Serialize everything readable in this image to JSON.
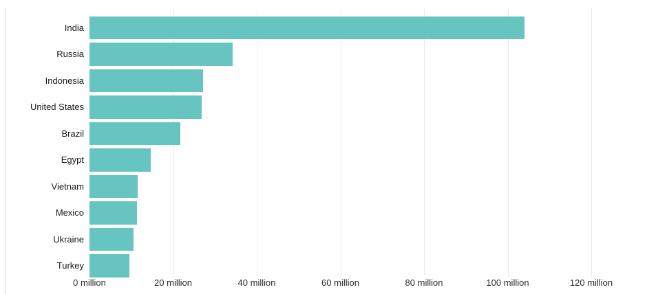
{
  "chart_data": {
    "type": "bar",
    "orientation": "horizontal",
    "title": "",
    "xlabel": "",
    "ylabel": "",
    "unit": "million",
    "categories": [
      "India",
      "Russia",
      "Indonesia",
      "United States",
      "Brazil",
      "Egypt",
      "Vietnam",
      "Mexico",
      "Ukraine",
      "Turkey"
    ],
    "values": [
      104.0,
      34.2,
      27.1,
      26.8,
      21.8,
      14.7,
      11.6,
      11.4,
      10.6,
      9.6
    ],
    "x_ticks": [
      {
        "value": 0,
        "label": "0 million"
      },
      {
        "value": 20,
        "label": "20 million"
      },
      {
        "value": 40,
        "label": "40 million"
      },
      {
        "value": 60,
        "label": "60 million"
      },
      {
        "value": 80,
        "label": "80 million"
      },
      {
        "value": 100,
        "label": "100 million"
      },
      {
        "value": 120,
        "label": "120 million"
      }
    ],
    "xlim": [
      0,
      132.5
    ],
    "grid": true,
    "legend": null,
    "bar_color": "#66c5c1",
    "gridline_color": "#e9e9e9",
    "label_color": "#1a1a1a",
    "tick_label_color": "#2b2b2b",
    "frame_border_color": "#d9d9d9"
  }
}
